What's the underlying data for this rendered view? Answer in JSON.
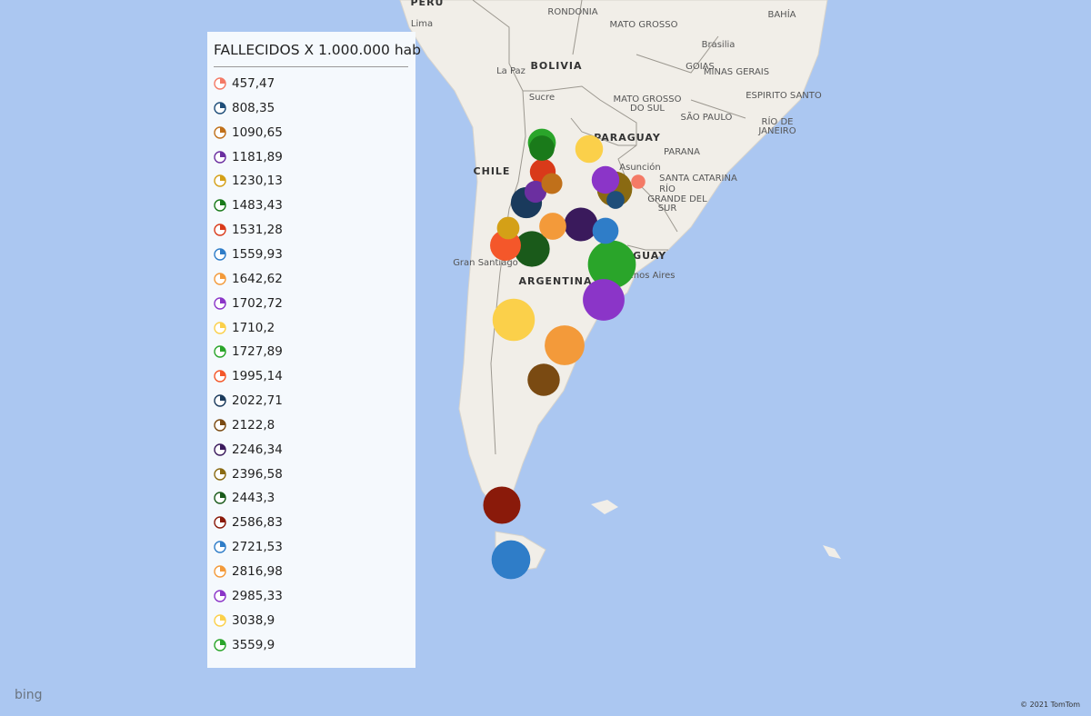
{
  "legend": {
    "title": "FALLECIDOS X 1.000.000 hab",
    "items": [
      {
        "label": "457,47",
        "value": 457.47,
        "color": "#f47a66"
      },
      {
        "label": "808,35",
        "value": 808.35,
        "color": "#1f4e79"
      },
      {
        "label": "1090,65",
        "value": 1090.65,
        "color": "#c0701a"
      },
      {
        "label": "1181,89",
        "value": 1181.89,
        "color": "#6b2fa0"
      },
      {
        "label": "1230,13",
        "value": 1230.13,
        "color": "#d4a017"
      },
      {
        "label": "1483,43",
        "value": 1483.43,
        "color": "#1a7a1a"
      },
      {
        "label": "1531,28",
        "value": 1531.28,
        "color": "#d93a1a"
      },
      {
        "label": "1559,93",
        "value": 1559.93,
        "color": "#2f7dc8"
      },
      {
        "label": "1642,62",
        "value": 1642.62,
        "color": "#f39a3a"
      },
      {
        "label": "1702,72",
        "value": 1702.72,
        "color": "#8b35c8"
      },
      {
        "label": "1710,2",
        "value": 1710.2,
        "color": "#fbd04a"
      },
      {
        "label": "1727,89",
        "value": 1727.89,
        "color": "#2aa52a"
      },
      {
        "label": "1995,14",
        "value": 1995.14,
        "color": "#f4572a"
      },
      {
        "label": "2022,71",
        "value": 2022.71,
        "color": "#1a3a5c"
      },
      {
        "label": "2122,8",
        "value": 2122.8,
        "color": "#7a4a12"
      },
      {
        "label": "2246,34",
        "value": 2246.34,
        "color": "#3a1a5c"
      },
      {
        "label": "2396,58",
        "value": 2396.58,
        "color": "#8a6a12"
      },
      {
        "label": "2443,3",
        "value": 2443.3,
        "color": "#1a5a1a"
      },
      {
        "label": "2586,83",
        "value": 2586.83,
        "color": "#8a1a0a"
      },
      {
        "label": "2721,53",
        "value": 2721.53,
        "color": "#2f7dc8"
      },
      {
        "label": "2816,98",
        "value": 2816.98,
        "color": "#f39a3a"
      },
      {
        "label": "2985,33",
        "value": 2985.33,
        "color": "#8b35c8"
      },
      {
        "label": "3038,9",
        "value": 3038.9,
        "color": "#fbd04a"
      },
      {
        "label": "3559,9",
        "value": 3559.9,
        "color": "#2aa52a"
      }
    ]
  },
  "map_labels": [
    "PERU",
    "Lima",
    "RONDONIA",
    "MATO GROSSO",
    "BAHÍA",
    "Brasilia",
    "GOIAS",
    "MINAS GERAIS",
    "ESPIRITO SANTO",
    "La Paz",
    "BOLIVIA",
    "Sucre",
    "MATO GROSSO",
    "DO SUL",
    "SÃO PAULO",
    "RÍO DE",
    "JANEIRO",
    "PARAGUAY",
    "PARANA",
    "SANTA CATARINA",
    "RÍO",
    "GRANDE DEL",
    "SUR",
    "CHILE",
    "Asunción",
    "Gran Santiago",
    "ARGENTINA",
    "URUGUAY",
    "Buenos Aires"
  ],
  "logo": "bing",
  "copyright": "© 2021 TomTom"
}
